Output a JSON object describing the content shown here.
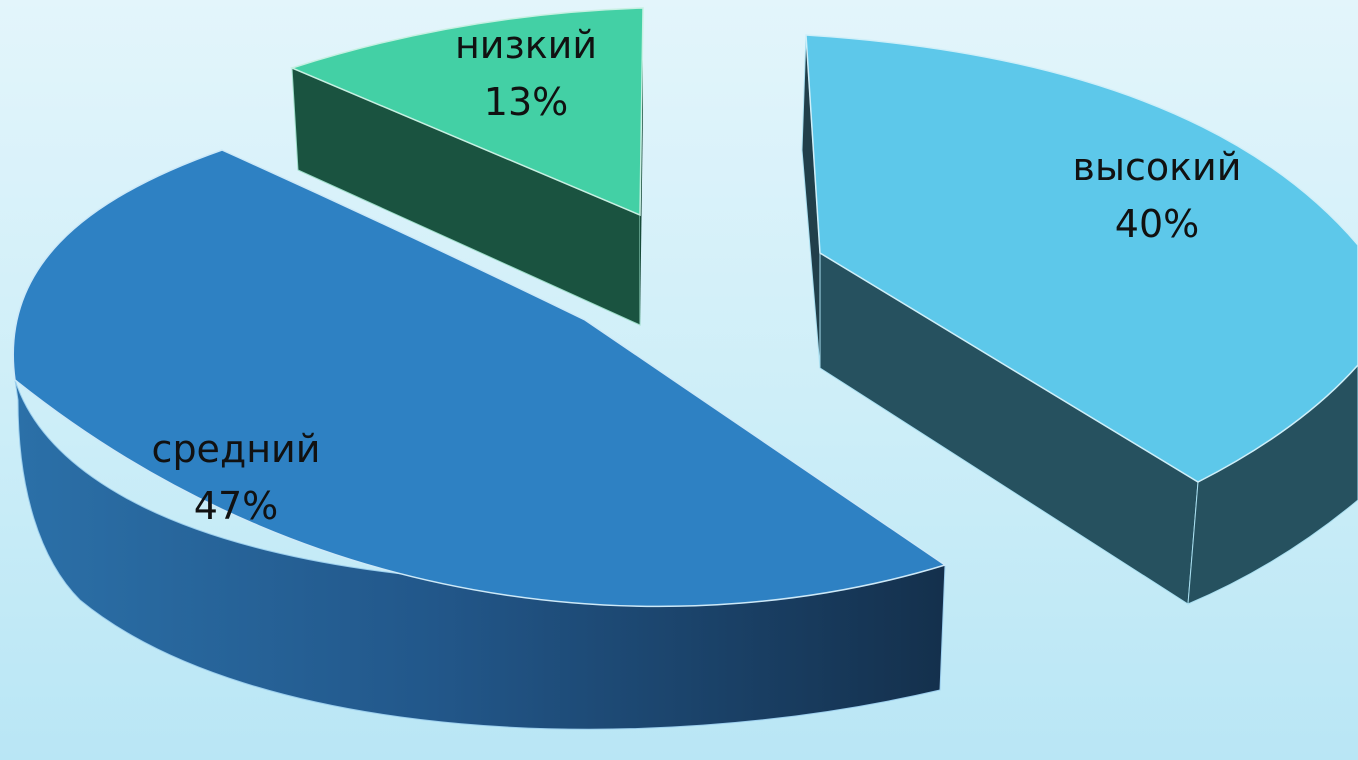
{
  "chart_data": {
    "type": "pie",
    "style": "3d-exploded",
    "title": "",
    "legend": "none",
    "slices": [
      {
        "category": "высокий",
        "value": 40,
        "label_value": "40%",
        "color_top": "#5dc8ea",
        "color_side": "#26515f"
      },
      {
        "category": "средний",
        "value": 47,
        "label_value": "47%",
        "color_top": "#2e81c3",
        "color_side_light": "#2b70a8",
        "color_side_dark": "#14304c"
      },
      {
        "category": "низкий",
        "value": 13,
        "label_value": "13%",
        "color_top": "#43d0a5",
        "color_side": "#1a5340"
      }
    ]
  }
}
